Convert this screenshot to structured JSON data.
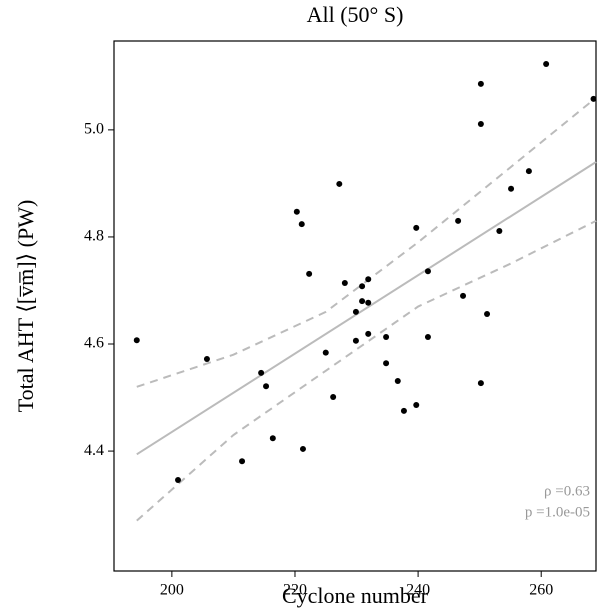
{
  "chart_data": {
    "type": "scatter",
    "title": "All (50° S)",
    "x_label": "Cyclone number",
    "y_label": "Total AHT ⟨[v̅m̅]⟩ (PW)",
    "xlim": [
      190.6,
      268.9
    ],
    "ylim": [
      4.176,
      5.166
    ],
    "xticks": [
      200,
      220,
      240,
      260
    ],
    "yticks": [
      4.4,
      4.6,
      4.8,
      {
        "value": 5.0,
        "label": "5.0"
      }
    ],
    "series": [
      {
        "color": "#000000",
        "x": [
          194.3,
          201.0,
          205.7,
          211.4,
          214.5,
          215.3,
          216.4,
          220.3,
          221.1,
          221.3,
          222.3,
          225.0,
          226.2,
          227.2,
          228.1,
          229.9,
          229.9,
          230.9,
          230.9,
          231.9,
          231.9,
          231.9,
          234.8,
          234.8,
          236.7,
          237.7,
          239.7,
          239.7,
          241.6,
          241.6,
          246.5,
          247.3,
          250.2,
          250.2,
          250.2,
          251.2,
          253.2,
          255.1,
          258.0,
          260.8,
          268.5
        ],
        "values": [
          4.607,
          4.346,
          4.572,
          4.381,
          4.546,
          4.521,
          4.424,
          4.847,
          4.824,
          4.404,
          4.731,
          4.584,
          4.501,
          4.899,
          4.714,
          4.66,
          4.606,
          4.708,
          4.68,
          4.721,
          4.677,
          4.619,
          4.613,
          4.564,
          4.531,
          4.475,
          4.486,
          4.817,
          4.736,
          4.613,
          4.83,
          4.69,
          5.086,
          5.011,
          4.527,
          4.656,
          4.811,
          4.89,
          4.923,
          5.123,
          5.058
        ]
      }
    ],
    "lines": [
      {
        "color": "#bbbbbb",
        "dashed": false,
        "x": [
          194.3,
          268.9
        ],
        "values": [
          4.394,
          4.94
        ]
      },
      {
        "color": "#bbbbbb",
        "dashed": true,
        "x": [
          194.3,
          210,
          225,
          240,
          255,
          268.9
        ],
        "values": [
          4.52,
          4.58,
          4.66,
          4.79,
          4.93,
          5.06
        ]
      },
      {
        "color": "#bbbbbb",
        "dashed": true,
        "x": [
          194.3,
          210,
          225,
          240,
          255,
          268.9
        ],
        "values": [
          4.27,
          4.43,
          4.55,
          4.67,
          4.75,
          4.83
        ]
      }
    ],
    "annotations": [
      "ρ =0.63",
      "p =1.0e-05"
    ]
  }
}
